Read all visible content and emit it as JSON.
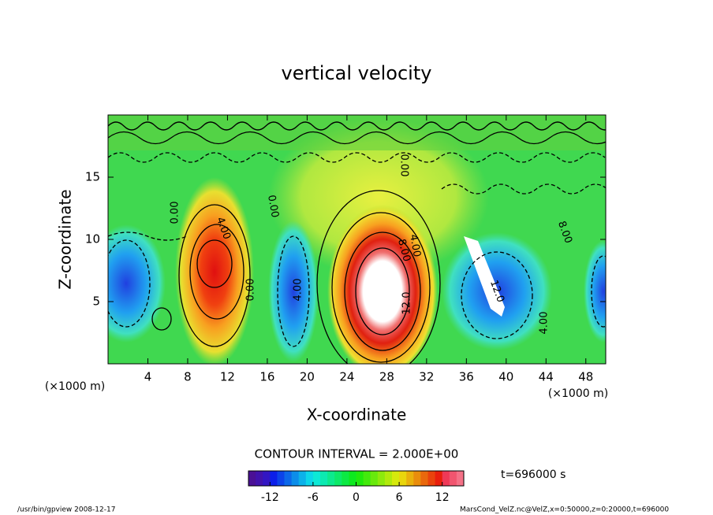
{
  "chart_data": {
    "type": "contour",
    "title": "vertical velocity",
    "x_label": "X-coordinate",
    "y_label": "Z-coordinate",
    "x_unit": "(×1000 m)",
    "y_unit": "(×1000 m)",
    "xlim": [
      0,
      50
    ],
    "xticks": [
      4,
      8,
      12,
      16,
      20,
      24,
      28,
      32,
      36,
      40,
      44,
      48
    ],
    "ylim": [
      0,
      20
    ],
    "yticks": [
      5,
      10,
      15
    ],
    "contour_interval_label": "CONTOUR INTERVAL = 2.000E+00",
    "colorbar": {
      "lim": [
        -15,
        15
      ],
      "ticks": [
        -12,
        -6,
        0,
        6,
        12
      ]
    },
    "time_label": "t=696000 s",
    "contour_labels": [
      "0.00",
      "4.00",
      "0.00",
      "0.00",
      "4.00",
      "8.00",
      "4.00",
      "12.0",
      "12.0",
      "4.00",
      "8.00",
      "0.00"
    ]
  },
  "footer": {
    "left": "/usr/bin/gpview   2008-12-17",
    "right": "MarsCond_VelZ.nc@VelZ,x=0:50000,z=0:20000,t=696000"
  }
}
